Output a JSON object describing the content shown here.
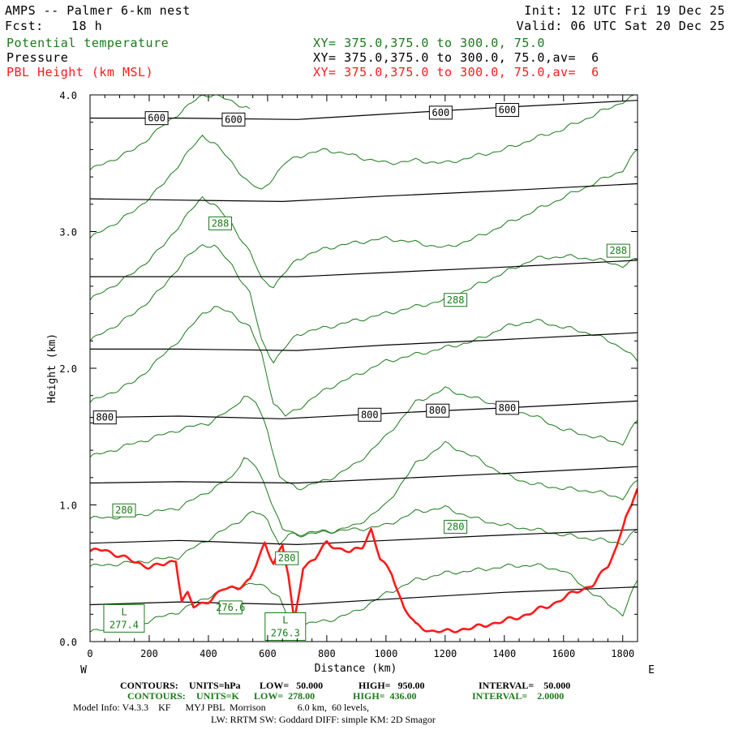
{
  "header": {
    "title": "AMPS -- Palmer 6-km nest",
    "fcst_label": "Fcst:",
    "fcst_value": "18 h",
    "init": "Init: 12 UTC Fri 19 Dec 25",
    "valid": "Valid: 06 UTC Sat 20 Dec 25",
    "fields": [
      {
        "name": "Potential temperature",
        "xy": "XY= 375.0,375.0 to 300.0, 75.0",
        "color": "#1a7a1a"
      },
      {
        "name": "Pressure",
        "xy": "XY= 375.0,375.0 to 300.0, 75.0,av=  6",
        "color": "#000000"
      },
      {
        "name": "PBL Height (km MSL)",
        "xy": "XY= 375.0,375.0 to 300.0, 75.0,av=  6",
        "color": "#ff1a1a"
      }
    ]
  },
  "chart_data": {
    "type": "line",
    "title": "AMPS -- Palmer 6-km nest",
    "xlabel": "Distance (km)",
    "ylabel": "Height (km)",
    "xlim": [
      0,
      1850
    ],
    "ylim": [
      0,
      4.0
    ],
    "xticks": [
      0,
      200,
      400,
      600,
      800,
      1000,
      1200,
      1400,
      1600,
      1800
    ],
    "yticks": [
      0.0,
      1.0,
      2.0,
      3.0,
      4.0
    ],
    "ytick_labels": [
      "0.0",
      "1.0",
      "2.0",
      "3.0",
      "4.0"
    ],
    "x_end_labels": {
      "left": "W",
      "right": "E"
    },
    "pressure_contours": [
      {
        "x": [
          0,
          300,
          700,
          1000,
          1400,
          1850
        ],
        "y": [
          0.27,
          0.29,
          0.27,
          0.31,
          0.36,
          0.4
        ]
      },
      {
        "x": [
          0,
          300,
          700,
          1000,
          1400,
          1850
        ],
        "y": [
          0.72,
          0.74,
          0.71,
          0.74,
          0.78,
          0.82
        ]
      },
      {
        "x": [
          0,
          300,
          700,
          1000,
          1400,
          1850
        ],
        "y": [
          1.16,
          1.17,
          1.16,
          1.19,
          1.23,
          1.28
        ]
      },
      {
        "x": [
          0,
          300,
          650,
          1000,
          1400,
          1850
        ],
        "y": [
          1.64,
          1.65,
          1.63,
          1.67,
          1.71,
          1.76
        ]
      },
      {
        "x": [
          0,
          300,
          700,
          1000,
          1400,
          1850
        ],
        "y": [
          2.14,
          2.14,
          2.13,
          2.17,
          2.21,
          2.26
        ]
      },
      {
        "x": [
          0,
          300,
          700,
          1000,
          1400,
          1850
        ],
        "y": [
          2.67,
          2.67,
          2.67,
          2.7,
          2.74,
          2.79
        ]
      },
      {
        "x": [
          0,
          300,
          650,
          1000,
          1400,
          1850
        ],
        "y": [
          3.24,
          3.23,
          3.22,
          3.26,
          3.3,
          3.35
        ]
      },
      {
        "x": [
          0,
          300,
          700,
          1000,
          1400,
          1850
        ],
        "y": [
          3.83,
          3.83,
          3.82,
          3.86,
          3.91,
          3.96
        ]
      }
    ],
    "theta_contours": [
      {
        "x": [
          0,
          150,
          300,
          400,
          480,
          550,
          600,
          640,
          680,
          800,
          900,
          1000,
          1100,
          1200,
          1300,
          1400,
          1500,
          1600,
          1700,
          1800,
          1850
        ],
        "y": [
          0.07,
          0.12,
          0.22,
          0.33,
          0.4,
          0.42,
          0.4,
          0.32,
          0.12,
          0.15,
          0.22,
          0.35,
          0.45,
          0.5,
          0.52,
          0.55,
          0.56,
          0.52,
          0.35,
          0.2,
          0.45
        ]
      },
      {
        "x": [
          0,
          150,
          300,
          400,
          480,
          550,
          600,
          640,
          670,
          750,
          900,
          1000,
          1100,
          1200,
          1300,
          1400,
          1500,
          1600,
          1700,
          1800,
          1850
        ],
        "y": [
          0.55,
          0.58,
          0.62,
          0.75,
          0.85,
          0.95,
          0.9,
          0.7,
          0.78,
          0.8,
          0.82,
          0.85,
          0.95,
          0.98,
          0.9,
          0.85,
          0.82,
          0.78,
          0.75,
          0.72,
          0.82
        ]
      },
      {
        "x": [
          0,
          150,
          300,
          400,
          480,
          520,
          560,
          600,
          650,
          700,
          800,
          900,
          1000,
          1100,
          1200,
          1300,
          1400,
          1500,
          1600,
          1700,
          1800,
          1850
        ],
        "y": [
          0.9,
          0.92,
          0.98,
          1.1,
          1.2,
          1.35,
          1.28,
          1.1,
          0.82,
          0.78,
          0.8,
          0.85,
          1.0,
          1.3,
          1.45,
          1.35,
          1.22,
          1.15,
          1.12,
          1.1,
          1.05,
          1.18
        ]
      },
      {
        "x": [
          0,
          150,
          300,
          400,
          480,
          520,
          560,
          600,
          640,
          700,
          800,
          900,
          1000,
          1100,
          1200,
          1300,
          1400,
          1500,
          1600,
          1700,
          1800,
          1850
        ],
        "y": [
          1.35,
          1.45,
          1.55,
          1.6,
          1.7,
          1.8,
          1.75,
          1.55,
          1.2,
          1.12,
          1.18,
          1.3,
          1.5,
          1.75,
          1.85,
          1.78,
          1.72,
          1.65,
          1.55,
          1.5,
          1.45,
          1.62
        ]
      },
      {
        "x": [
          0,
          150,
          250,
          320,
          380,
          420,
          480,
          540,
          580,
          620,
          660,
          700,
          800,
          900,
          1000,
          1100,
          1200,
          1300,
          1400,
          1500,
          1600,
          1700,
          1800,
          1850
        ],
        "y": [
          1.75,
          1.9,
          2.1,
          2.25,
          2.4,
          2.45,
          2.4,
          2.3,
          2.1,
          1.75,
          1.65,
          1.7,
          1.85,
          1.95,
          2.05,
          2.1,
          2.15,
          2.2,
          2.3,
          2.35,
          2.3,
          2.25,
          2.15,
          2.05
        ]
      },
      {
        "x": [
          0,
          150,
          250,
          320,
          380,
          420,
          480,
          540,
          580,
          620,
          660,
          700,
          800,
          900,
          1000,
          1100,
          1200,
          1300,
          1400,
          1500,
          1600,
          1700,
          1800,
          1850
        ],
        "y": [
          2.2,
          2.4,
          2.6,
          2.8,
          2.9,
          2.9,
          2.75,
          2.55,
          2.2,
          2.05,
          2.15,
          2.25,
          2.3,
          2.35,
          2.4,
          2.45,
          2.5,
          2.6,
          2.7,
          2.8,
          2.82,
          2.8,
          2.75,
          2.8
        ]
      },
      {
        "x": [
          0,
          150,
          250,
          320,
          380,
          420,
          480,
          540,
          580,
          620,
          660,
          700,
          800,
          900,
          1000,
          1100,
          1200,
          1300,
          1400,
          1500,
          1600,
          1700,
          1800,
          1850
        ],
        "y": [
          2.5,
          2.7,
          2.9,
          3.1,
          3.25,
          3.2,
          3.05,
          2.85,
          2.65,
          2.6,
          2.7,
          2.8,
          2.88,
          2.92,
          2.95,
          2.92,
          2.88,
          2.95,
          3.05,
          3.15,
          3.25,
          3.35,
          3.45,
          3.6
        ]
      },
      {
        "x": [
          0,
          150,
          250,
          320,
          380,
          420,
          480,
          540,
          580,
          620,
          660,
          700,
          800,
          900,
          1000,
          1100,
          1200,
          1300,
          1400,
          1500,
          1600,
          1700,
          1800,
          1850
        ],
        "y": [
          2.95,
          3.15,
          3.35,
          3.55,
          3.7,
          3.65,
          3.5,
          3.35,
          3.3,
          3.4,
          3.5,
          3.55,
          3.6,
          3.55,
          3.5,
          3.52,
          3.5,
          3.55,
          3.6,
          3.68,
          3.75,
          3.85,
          3.95,
          4.0
        ]
      },
      {
        "x": [
          0,
          150,
          250,
          320,
          380,
          420,
          480,
          540
        ],
        "y": [
          3.45,
          3.6,
          3.78,
          3.9,
          4.0,
          4.0,
          3.95,
          3.9
        ]
      }
    ],
    "pbl_height": {
      "x": [
        0,
        50,
        100,
        150,
        200,
        250,
        290,
        310,
        330,
        350,
        400,
        450,
        500,
        540,
        560,
        590,
        620,
        650,
        670,
        690,
        720,
        760,
        800,
        840,
        880,
        920,
        950,
        980,
        1020,
        1060,
        1100,
        1150,
        1200,
        1250,
        1300,
        1350,
        1400,
        1450,
        1500,
        1550,
        1600,
        1650,
        1700,
        1750,
        1780,
        1810,
        1830,
        1850
      ],
      "y": [
        0.66,
        0.67,
        0.63,
        0.58,
        0.55,
        0.56,
        0.6,
        0.3,
        0.35,
        0.25,
        0.3,
        0.38,
        0.4,
        0.45,
        0.55,
        0.72,
        0.58,
        0.7,
        0.48,
        0.14,
        0.55,
        0.6,
        0.73,
        0.68,
        0.65,
        0.7,
        0.82,
        0.6,
        0.5,
        0.25,
        0.12,
        0.08,
        0.07,
        0.09,
        0.1,
        0.13,
        0.15,
        0.18,
        0.22,
        0.26,
        0.32,
        0.37,
        0.42,
        0.55,
        0.7,
        0.92,
        0.98,
        1.12
      ]
    },
    "pressure_labels": [
      {
        "text": "600",
        "x": 225,
        "y": 3.83
      },
      {
        "text": "600",
        "x": 485,
        "y": 3.82
      },
      {
        "text": "600",
        "x": 1185,
        "y": 3.87
      },
      {
        "text": "600",
        "x": 1410,
        "y": 3.89
      },
      {
        "text": "800",
        "x": 50,
        "y": 1.64
      },
      {
        "text": "800",
        "x": 945,
        "y": 1.66
      },
      {
        "text": "800",
        "x": 1175,
        "y": 1.69
      },
      {
        "text": "800",
        "x": 1410,
        "y": 1.71
      }
    ],
    "theta_labels": [
      {
        "text": "288",
        "x": 440,
        "y": 3.06
      },
      {
        "text": "288",
        "x": 1235,
        "y": 2.5
      },
      {
        "text": "288",
        "x": 1785,
        "y": 2.86
      },
      {
        "text": "280",
        "x": 115,
        "y": 0.96
      },
      {
        "text": "280",
        "x": 1235,
        "y": 0.84
      },
      {
        "text": "280",
        "x": 665,
        "y": 0.61
      }
    ],
    "extrema_labels": [
      {
        "text": "L",
        "value": "277.4",
        "x": 115,
        "y": 0.17
      },
      {
        "text": "L",
        "value": "276.3",
        "x": 660,
        "y": 0.11
      },
      {
        "value": "276.6",
        "x": 475,
        "y": 0.25
      }
    ]
  },
  "footer": {
    "contours_p": {
      "label": "CONTOURS:",
      "units": "UNITS=hPa",
      "low": "LOW=   50.000",
      "high": "HIGH=   950.00",
      "interval": "INTERVAL=    50.000"
    },
    "contours_t": {
      "label": "CONTOURS:",
      "units": "UNITS=K",
      "low": "LOW=  278.00",
      "high": "HIGH=  436.00",
      "interval": "INTERVAL=    2.0000"
    },
    "model_info": "Model Info: V4.3.3    KF      MYJ PBL  Morrison             6.0 km,  60 levels,",
    "model_info2": "LW: RRTM SW: Goddard DIFF: simple KM: 2D Smagor"
  },
  "colors": {
    "pressure": "#000000",
    "theta": "#1a7a1a",
    "pbl": "#ff1a1a"
  }
}
